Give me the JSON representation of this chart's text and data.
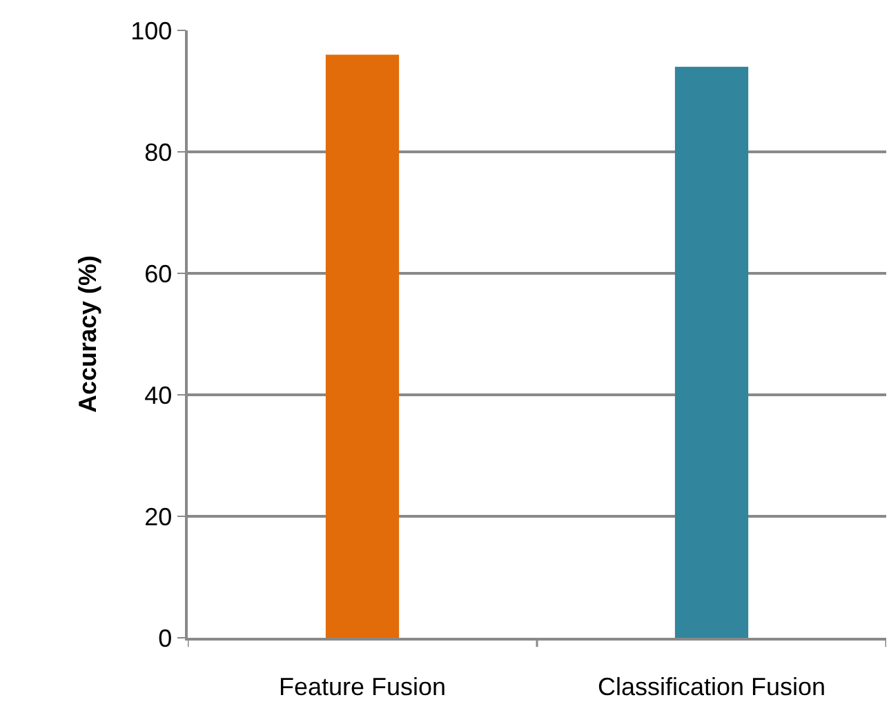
{
  "chart_data": {
    "type": "bar",
    "ylabel": "Accuracy (%)",
    "categories": [
      "Feature Fusion",
      "Classification Fusion"
    ],
    "values": [
      96,
      94
    ],
    "colors": [
      "#e36c0a",
      "#31859c"
    ],
    "ylim": [
      0,
      100
    ],
    "yticks": [
      0,
      20,
      40,
      60,
      80,
      100
    ],
    "grid": "y"
  }
}
